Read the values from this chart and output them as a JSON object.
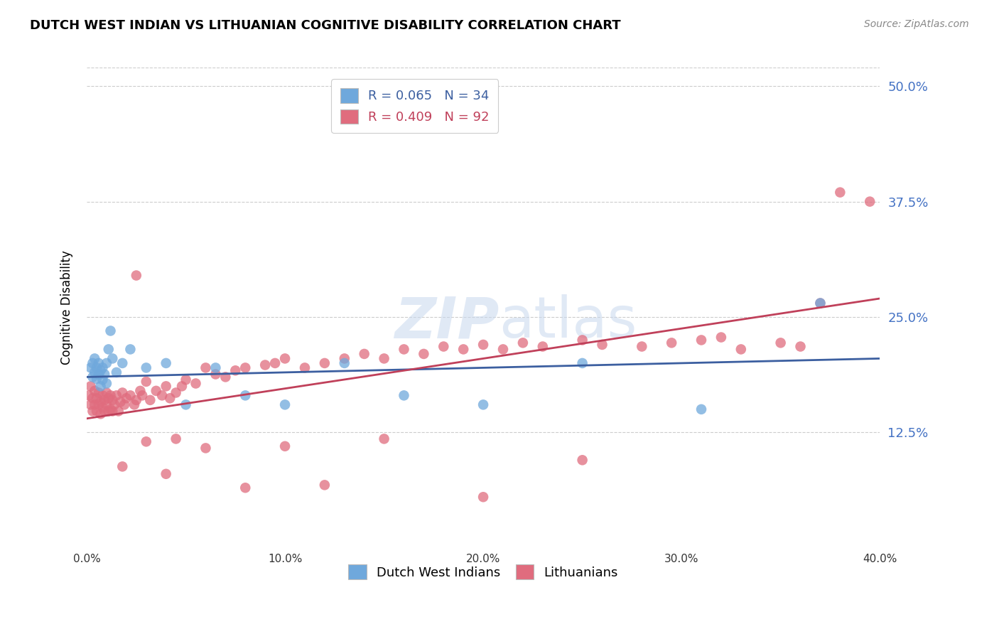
{
  "title": "DUTCH WEST INDIAN VS LITHUANIAN COGNITIVE DISABILITY CORRELATION CHART",
  "source": "Source: ZipAtlas.com",
  "ylabel": "Cognitive Disability",
  "ytick_labels": [
    "12.5%",
    "25.0%",
    "37.5%",
    "50.0%"
  ],
  "ytick_values": [
    0.125,
    0.25,
    0.375,
    0.5
  ],
  "xlim": [
    0.0,
    0.4
  ],
  "ylim": [
    0.0,
    0.52
  ],
  "blue_color": "#6fa8dc",
  "pink_color": "#e06c7e",
  "blue_line_color": "#3c5fa0",
  "pink_line_color": "#c0405a",
  "blue_R": 0.065,
  "blue_N": 34,
  "pink_R": 0.409,
  "pink_N": 92,
  "blue_label": "Dutch West Indians",
  "pink_label": "Lithuanians",
  "blue_line_x": [
    0.0,
    0.4
  ],
  "blue_line_y": [
    0.185,
    0.205
  ],
  "pink_line_x": [
    0.0,
    0.4
  ],
  "pink_line_y": [
    0.14,
    0.27
  ],
  "blue_x": [
    0.002,
    0.003,
    0.003,
    0.004,
    0.004,
    0.005,
    0.005,
    0.006,
    0.006,
    0.007,
    0.007,
    0.008,
    0.008,
    0.009,
    0.01,
    0.01,
    0.011,
    0.012,
    0.013,
    0.015,
    0.018,
    0.022,
    0.03,
    0.04,
    0.05,
    0.065,
    0.08,
    0.1,
    0.13,
    0.16,
    0.2,
    0.25,
    0.31,
    0.37
  ],
  "blue_y": [
    0.195,
    0.185,
    0.2,
    0.19,
    0.205,
    0.183,
    0.195,
    0.188,
    0.2,
    0.175,
    0.192,
    0.182,
    0.195,
    0.188,
    0.178,
    0.2,
    0.215,
    0.235,
    0.205,
    0.19,
    0.2,
    0.215,
    0.195,
    0.2,
    0.155,
    0.195,
    0.165,
    0.155,
    0.2,
    0.165,
    0.155,
    0.2,
    0.15,
    0.265
  ],
  "pink_x": [
    0.001,
    0.002,
    0.002,
    0.003,
    0.003,
    0.004,
    0.004,
    0.005,
    0.005,
    0.006,
    0.006,
    0.007,
    0.007,
    0.008,
    0.008,
    0.009,
    0.009,
    0.01,
    0.01,
    0.011,
    0.011,
    0.012,
    0.012,
    0.013,
    0.013,
    0.014,
    0.015,
    0.016,
    0.017,
    0.018,
    0.019,
    0.02,
    0.022,
    0.024,
    0.025,
    0.027,
    0.028,
    0.03,
    0.032,
    0.035,
    0.038,
    0.04,
    0.042,
    0.045,
    0.048,
    0.05,
    0.055,
    0.06,
    0.065,
    0.07,
    0.075,
    0.08,
    0.09,
    0.095,
    0.1,
    0.11,
    0.12,
    0.13,
    0.14,
    0.15,
    0.16,
    0.17,
    0.18,
    0.19,
    0.2,
    0.21,
    0.22,
    0.23,
    0.25,
    0.26,
    0.28,
    0.295,
    0.31,
    0.32,
    0.33,
    0.35,
    0.36,
    0.37,
    0.38,
    0.395,
    0.018,
    0.025,
    0.03,
    0.04,
    0.045,
    0.06,
    0.08,
    0.1,
    0.12,
    0.15,
    0.2,
    0.25
  ],
  "pink_y": [
    0.165,
    0.155,
    0.175,
    0.148,
    0.162,
    0.155,
    0.17,
    0.148,
    0.162,
    0.155,
    0.168,
    0.145,
    0.158,
    0.152,
    0.165,
    0.148,
    0.16,
    0.155,
    0.168,
    0.148,
    0.162,
    0.15,
    0.165,
    0.148,
    0.16,
    0.155,
    0.165,
    0.148,
    0.158,
    0.168,
    0.155,
    0.162,
    0.165,
    0.155,
    0.16,
    0.17,
    0.165,
    0.18,
    0.16,
    0.17,
    0.165,
    0.175,
    0.162,
    0.168,
    0.175,
    0.182,
    0.178,
    0.195,
    0.188,
    0.185,
    0.192,
    0.195,
    0.198,
    0.2,
    0.205,
    0.195,
    0.2,
    0.205,
    0.21,
    0.205,
    0.215,
    0.21,
    0.218,
    0.215,
    0.22,
    0.215,
    0.222,
    0.218,
    0.225,
    0.22,
    0.218,
    0.222,
    0.225,
    0.228,
    0.215,
    0.222,
    0.218,
    0.265,
    0.385,
    0.375,
    0.088,
    0.295,
    0.115,
    0.08,
    0.118,
    0.108,
    0.065,
    0.11,
    0.068,
    0.118,
    0.055,
    0.095
  ]
}
